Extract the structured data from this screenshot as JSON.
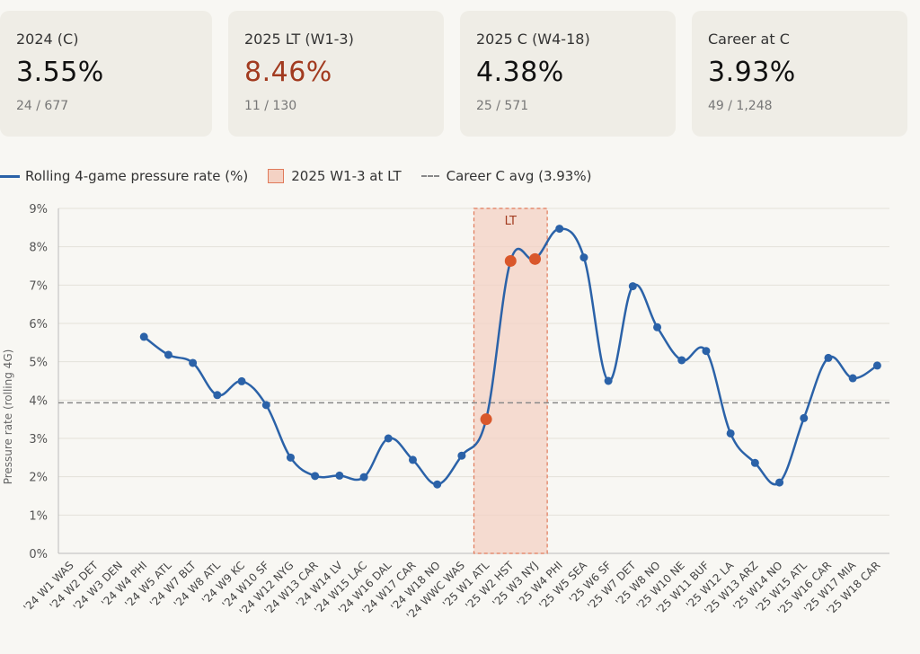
{
  "cards": [
    {
      "label": "2024 (C)",
      "value": "3.55%",
      "sub": "24 / 677",
      "highlight": false
    },
    {
      "label": "2025 LT (W1-3)",
      "value": "8.46%",
      "sub": "11 / 130",
      "highlight": true
    },
    {
      "label": "2025 C (W4-18)",
      "value": "4.38%",
      "sub": "25 / 571",
      "highlight": false
    },
    {
      "label": "Career at C",
      "value": "3.93%",
      "sub": "49 / 1,248",
      "highlight": false
    }
  ],
  "legend": {
    "series": "Rolling 4-game pressure rate (%)",
    "band": "2025 W1-3 at LT",
    "avg": "Career C avg (3.93%)"
  },
  "colors": {
    "line": "#2b62a8",
    "highlight_point": "#d9572b",
    "band_fill": "#f4d2c4",
    "band_stroke": "#e07a5a",
    "avg_line": "#888888",
    "highlight_text": "#a23b20"
  },
  "chart_data": {
    "type": "line",
    "ylabel": "Pressure rate (rolling 4G)",
    "ylim": [
      0,
      9
    ],
    "yticks": [
      "0%",
      "1%",
      "2%",
      "3%",
      "4%",
      "5%",
      "6%",
      "7%",
      "8%",
      "9%"
    ],
    "categories": [
      "'24 W1 WAS",
      "'24 W2 DET",
      "'24 W3 DEN",
      "'24 W4 PHI",
      "'24 W5 ATL",
      "'24 W7 BLT",
      "'24 W8 ATL",
      "'24 W9 KC",
      "'24 W10 SF",
      "'24 W12 NYG",
      "'24 W13 CAR",
      "'24 W14 LV",
      "'24 W15 LAC",
      "'24 W16 DAL",
      "'24 W17 CAR",
      "'24 W18 NO",
      "'24 WWC WAS",
      "'25 W1 ATL",
      "'25 W2 HST",
      "'25 W3 NYJ",
      "'25 W4 PHI",
      "'25 W5 SEA",
      "'25 W6 SF",
      "'25 W7 DET",
      "'25 W8 NO",
      "'25 W10 NE",
      "'25 W11 BUF",
      "'25 W12 LA",
      "'25 W13 ARZ",
      "'25 W14 NO",
      "'25 W15 ATL",
      "'25 W16 CAR",
      "'25 W17 MIA",
      "'25 W18 CAR"
    ],
    "series": [
      {
        "values": [
          null,
          null,
          null,
          5.65,
          5.18,
          4.97,
          4.13,
          4.49,
          3.87,
          2.5,
          2.02,
          2.03,
          1.99,
          3.0,
          2.44,
          1.8,
          2.55,
          3.5,
          7.63,
          7.68,
          8.47,
          7.72,
          4.5,
          6.97,
          5.9,
          5.04,
          5.28,
          3.13,
          2.36,
          1.85,
          3.53,
          5.1,
          4.57,
          4.9
        ]
      }
    ],
    "highlight_indices": [
      17,
      18,
      19
    ],
    "band": {
      "start_index": 17,
      "end_index": 19,
      "label": "LT"
    },
    "reference_line": {
      "value": 3.93
    },
    "grid": true,
    "legend_position": "top-left"
  }
}
